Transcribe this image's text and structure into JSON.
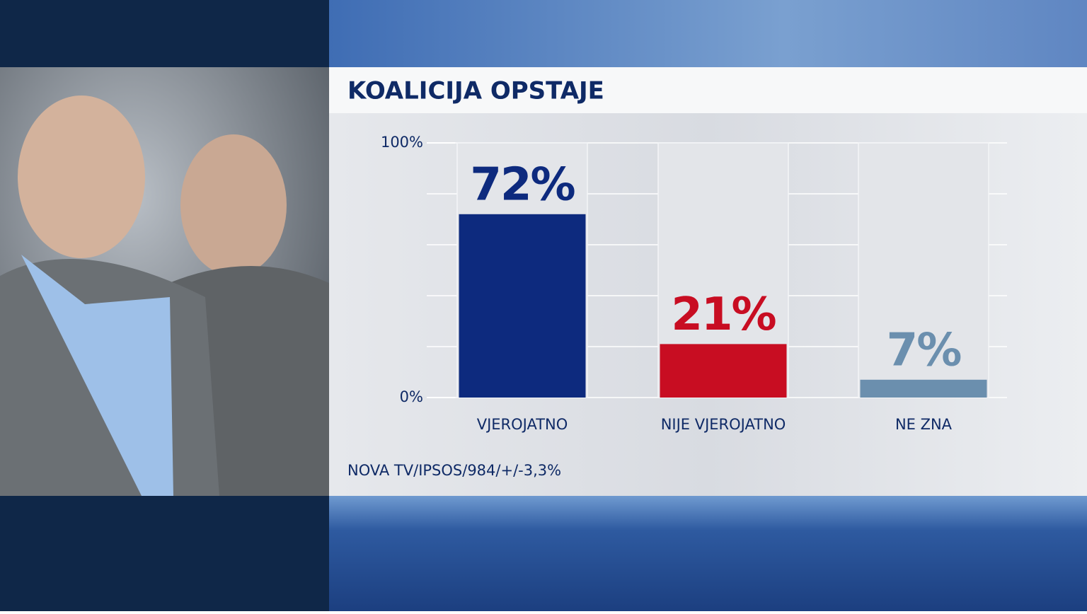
{
  "chart_data": {
    "type": "bar",
    "title": "KOALICIJA OPSTAJE",
    "categories": [
      "VJEROJATNO",
      "NIJE VJEROJATNO",
      "NE ZNA"
    ],
    "values": [
      72,
      21,
      7
    ],
    "value_labels": [
      "72%",
      "21%",
      "7%"
    ],
    "colors": [
      "#0d2a7e",
      "#c80d22",
      "#6b8fae"
    ],
    "ylim": [
      0,
      100
    ],
    "yticks": [
      {
        "value": 0,
        "label": "0%"
      },
      {
        "value": 100,
        "label": "100%"
      }
    ],
    "ygrid": [
      0,
      20,
      40,
      60,
      80,
      100
    ],
    "grid": true,
    "source": "NOVA TV/IPSOS/984/+/-3,3%"
  }
}
